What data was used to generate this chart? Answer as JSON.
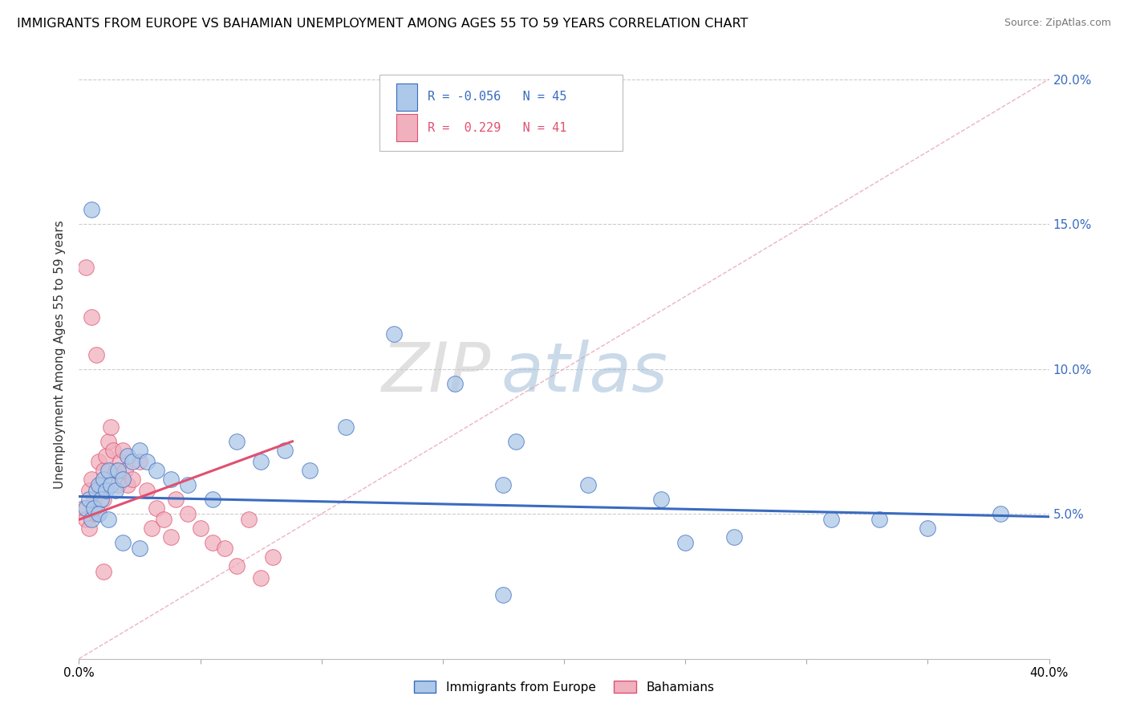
{
  "title": "IMMIGRANTS FROM EUROPE VS BAHAMIAN UNEMPLOYMENT AMONG AGES 55 TO 59 YEARS CORRELATION CHART",
  "source": "Source: ZipAtlas.com",
  "ylabel": "Unemployment Among Ages 55 to 59 years",
  "xlim": [
    0.0,
    0.4
  ],
  "ylim": [
    0.0,
    0.21
  ],
  "ytick_positions": [
    0.05,
    0.1,
    0.15,
    0.2
  ],
  "ytick_labels": [
    "5.0%",
    "10.0%",
    "15.0%",
    "20.0%"
  ],
  "legend1_label": "Immigrants from Europe",
  "legend2_label": "Bahamians",
  "blue_R": "-0.056",
  "blue_N": "45",
  "pink_R": "0.229",
  "pink_N": "41",
  "blue_color": "#adc8e8",
  "pink_color": "#f0b0be",
  "blue_line_color": "#3a6bbf",
  "pink_line_color": "#e05070",
  "watermark_zip": "ZIP",
  "watermark_atlas": "atlas",
  "blue_scatter_x": [
    0.003,
    0.004,
    0.005,
    0.006,
    0.007,
    0.008,
    0.009,
    0.01,
    0.011,
    0.012,
    0.013,
    0.015,
    0.016,
    0.018,
    0.02,
    0.022,
    0.025,
    0.028,
    0.032,
    0.038,
    0.045,
    0.055,
    0.065,
    0.075,
    0.085,
    0.095,
    0.11,
    0.13,
    0.155,
    0.18,
    0.21,
    0.24,
    0.27,
    0.31,
    0.35,
    0.38,
    0.005,
    0.008,
    0.012,
    0.018,
    0.025,
    0.175,
    0.25,
    0.33,
    0.175
  ],
  "blue_scatter_y": [
    0.052,
    0.055,
    0.048,
    0.052,
    0.058,
    0.06,
    0.055,
    0.062,
    0.058,
    0.065,
    0.06,
    0.058,
    0.065,
    0.062,
    0.07,
    0.068,
    0.072,
    0.068,
    0.065,
    0.062,
    0.06,
    0.055,
    0.075,
    0.068,
    0.072,
    0.065,
    0.08,
    0.112,
    0.095,
    0.075,
    0.06,
    0.055,
    0.042,
    0.048,
    0.045,
    0.05,
    0.155,
    0.05,
    0.048,
    0.04,
    0.038,
    0.06,
    0.04,
    0.048,
    0.022
  ],
  "pink_scatter_x": [
    0.002,
    0.003,
    0.004,
    0.004,
    0.005,
    0.006,
    0.007,
    0.008,
    0.009,
    0.01,
    0.01,
    0.011,
    0.012,
    0.013,
    0.014,
    0.015,
    0.016,
    0.017,
    0.018,
    0.019,
    0.02,
    0.022,
    0.025,
    0.028,
    0.03,
    0.032,
    0.035,
    0.038,
    0.04,
    0.045,
    0.05,
    0.055,
    0.06,
    0.065,
    0.07,
    0.075,
    0.08,
    0.003,
    0.005,
    0.007,
    0.01
  ],
  "pink_scatter_y": [
    0.052,
    0.048,
    0.045,
    0.058,
    0.062,
    0.055,
    0.05,
    0.068,
    0.06,
    0.055,
    0.065,
    0.07,
    0.075,
    0.08,
    0.072,
    0.065,
    0.06,
    0.068,
    0.072,
    0.065,
    0.06,
    0.062,
    0.068,
    0.058,
    0.045,
    0.052,
    0.048,
    0.042,
    0.055,
    0.05,
    0.045,
    0.04,
    0.038,
    0.032,
    0.048,
    0.028,
    0.035,
    0.135,
    0.118,
    0.105,
    0.03
  ],
  "blue_trendline_x": [
    0.0,
    0.4
  ],
  "blue_trendline_y": [
    0.056,
    0.049
  ],
  "pink_trendline_x": [
    0.0,
    0.088
  ],
  "pink_trendline_y": [
    0.048,
    0.075
  ],
  "diag_line_x": [
    0.0,
    0.4
  ],
  "diag_line_y": [
    0.0,
    0.2
  ]
}
